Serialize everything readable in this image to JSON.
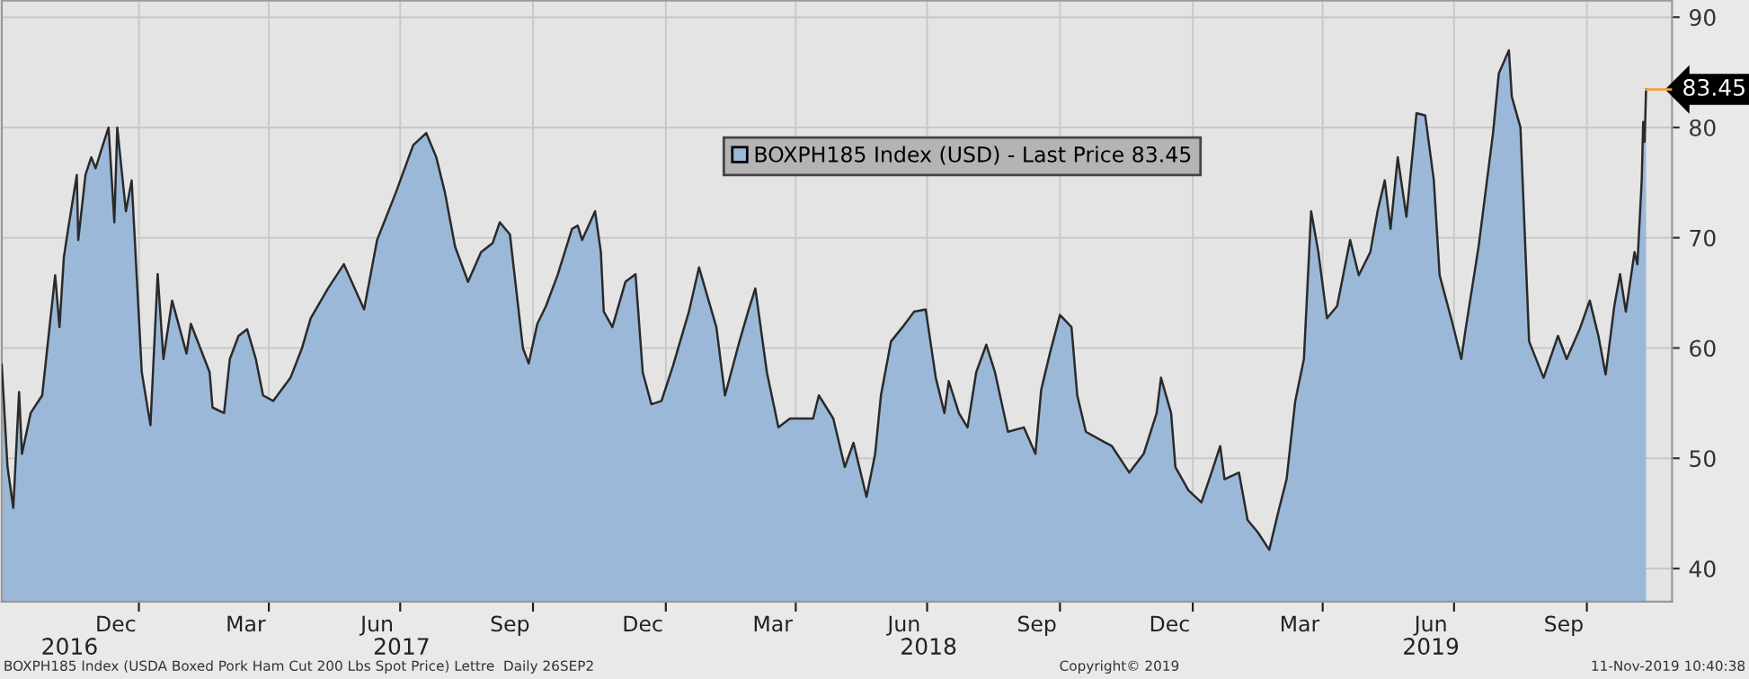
{
  "chart_data": {
    "type": "area",
    "series": [
      {
        "name": "BOXPH185 Index (USD) - Last Price 83.45",
        "color": "#9bb8d8",
        "x": [
          "2016-09-28",
          "2016-10-02",
          "2016-10-06",
          "2016-10-10",
          "2016-10-12",
          "2016-10-18",
          "2016-10-26",
          "2016-11-04",
          "2016-11-07",
          "2016-11-10",
          "2016-11-13",
          "2016-11-19",
          "2016-11-20",
          "2016-11-25",
          "2016-11-29",
          "2016-12-02",
          "2016-12-07",
          "2016-12-11",
          "2016-12-15",
          "2016-12-17",
          "2016-12-23",
          "2016-12-27",
          "2017-01-03",
          "2017-01-09",
          "2017-01-14",
          "2017-01-18",
          "2017-01-24",
          "2017-02-03",
          "2017-02-06",
          "2017-02-19",
          "2017-02-21",
          "2017-03-01",
          "2017-03-05",
          "2017-03-11",
          "2017-03-17",
          "2017-03-23",
          "2017-03-28",
          "2017-04-04",
          "2017-04-16",
          "2017-04-24",
          "2017-04-30",
          "2017-05-12",
          "2017-05-23",
          "2017-06-06",
          "2017-06-15",
          "2017-06-28",
          "2017-07-10",
          "2017-07-19",
          "2017-07-26",
          "2017-08-01",
          "2017-08-08",
          "2017-08-17",
          "2017-08-26",
          "2017-09-03",
          "2017-09-08",
          "2017-09-15",
          "2017-09-24",
          "2017-09-28",
          "2017-10-04",
          "2017-10-10",
          "2017-10-18",
          "2017-10-28",
          "2017-11-01",
          "2017-11-04",
          "2017-11-13",
          "2017-11-17",
          "2017-11-19",
          "2017-11-25",
          "2017-12-04",
          "2017-12-11",
          "2017-12-16",
          "2017-12-22",
          "2017-12-29",
          "2018-01-06",
          "2018-01-17",
          "2018-01-24",
          "2018-02-05",
          "2018-02-11",
          "2018-02-21",
          "2018-02-27",
          "2018-03-04",
          "2018-03-12",
          "2018-03-20",
          "2018-03-28",
          "2018-04-13",
          "2018-04-17",
          "2018-04-27",
          "2018-05-05",
          "2018-05-11",
          "2018-05-20",
          "2018-05-26",
          "2018-05-30",
          "2018-06-06",
          "2018-06-14",
          "2018-06-22",
          "2018-06-30",
          "2018-07-07",
          "2018-07-13",
          "2018-07-16",
          "2018-07-23",
          "2018-07-29",
          "2018-08-04",
          "2018-08-11",
          "2018-08-17",
          "2018-08-26",
          "2018-09-06",
          "2018-09-14",
          "2018-09-18",
          "2018-09-24",
          "2018-10-01",
          "2018-10-09",
          "2018-10-13",
          "2018-10-19",
          "2018-10-30",
          "2018-11-06",
          "2018-11-18",
          "2018-11-28",
          "2018-12-07",
          "2018-12-10",
          "2018-12-17",
          "2018-12-20",
          "2018-12-29",
          "2019-01-07",
          "2019-01-14",
          "2019-01-20",
          "2019-01-23",
          "2019-02-02",
          "2019-02-08",
          "2019-02-15",
          "2019-02-23",
          "2019-03-01",
          "2019-03-07",
          "2019-03-13",
          "2019-03-19",
          "2019-03-24",
          "2019-03-29",
          "2019-04-04",
          "2019-04-11",
          "2019-04-20",
          "2019-04-26",
          "2019-05-04",
          "2019-05-09",
          "2019-05-14",
          "2019-05-18",
          "2019-05-23",
          "2019-05-29",
          "2019-06-05",
          "2019-06-11",
          "2019-06-17",
          "2019-06-21",
          "2019-06-30",
          "2019-07-06",
          "2019-07-09",
          "2019-07-18",
          "2019-07-28",
          "2019-08-01",
          "2019-08-08",
          "2019-08-10",
          "2019-08-16",
          "2019-08-22",
          "2019-09-01",
          "2019-09-11",
          "2019-09-17",
          "2019-09-26",
          "2019-10-03",
          "2019-10-09",
          "2019-10-14",
          "2019-10-20",
          "2019-10-24",
          "2019-10-28",
          "2019-11-03",
          "2019-11-05",
          "2019-11-08",
          "2019-11-09",
          "2019-11-10",
          "2019-11-11"
        ],
        "values": [
          58.5,
          49.2,
          45.5,
          56,
          50.4,
          54.1,
          55.7,
          66.6,
          61.9,
          68.2,
          70.8,
          75.7,
          69.8,
          75.7,
          77.3,
          76.3,
          78.4,
          80,
          71.4,
          80,
          72.4,
          75.2,
          57.8,
          53,
          66.7,
          59,
          64.3,
          59.5,
          62.2,
          57.8,
          54.6,
          54.1,
          59,
          61.1,
          61.7,
          59,
          55.7,
          55.2,
          57.3,
          60,
          62.7,
          65.4,
          67.6,
          63.5,
          69.8,
          74.1,
          78.4,
          79.5,
          77.3,
          74.1,
          69.2,
          66,
          68.7,
          69.5,
          71.4,
          70.3,
          60,
          58.6,
          62.2,
          63.8,
          66.6,
          70.8,
          71.1,
          69.8,
          72.4,
          68.7,
          63.3,
          61.9,
          66,
          66.7,
          57.8,
          54.9,
          55.2,
          58.4,
          63.3,
          67.3,
          61.9,
          55.7,
          60.6,
          63.3,
          65.4,
          57.8,
          52.8,
          53.6,
          53.6,
          55.7,
          53.6,
          49.2,
          51.4,
          46.5,
          50.4,
          55.7,
          60.6,
          61.9,
          63.3,
          63.5,
          57.3,
          54.1,
          57,
          54.1,
          52.8,
          57.8,
          60.3,
          57.8,
          52.4,
          52.8,
          50.4,
          56.2,
          59.5,
          63,
          61.9,
          55.7,
          52.4,
          51.6,
          51.1,
          48.7,
          50.4,
          54.1,
          57.3,
          54.1,
          49.2,
          47.1,
          46,
          48.7,
          51.1,
          48.1,
          48.7,
          44.4,
          43.3,
          41.7,
          45,
          48.1,
          55.2,
          59,
          72.4,
          68.7,
          62.7,
          63.8,
          69.8,
          66.6,
          68.7,
          72.4,
          75.2,
          70.8,
          77.3,
          71.9,
          81.3,
          81.1,
          75.2,
          66.6,
          62.2,
          59,
          61.7,
          69.2,
          79.5,
          84.9,
          87,
          82.8,
          80,
          60.6,
          57.3,
          61.1,
          59,
          61.7,
          64.3,
          61.1,
          57.6,
          63.8,
          66.7,
          63.3,
          68.7,
          67.6,
          75.2,
          80.5,
          78.7,
          83.45
        ]
      }
    ],
    "xlim": [
      "2016-09-28",
      "2019-11-29"
    ],
    "xticks": [
      {
        "value": "2017-01-01",
        "label": null
      },
      {
        "value": "2017-04-01",
        "label": null
      },
      {
        "value": "2017-07-01",
        "label": null
      },
      {
        "value": "2017-10-01",
        "label": null
      },
      {
        "value": "2018-01-01",
        "label": null
      },
      {
        "value": "2018-04-01",
        "label": null
      },
      {
        "value": "2018-07-01",
        "label": null
      },
      {
        "value": "2018-10-01",
        "label": null
      },
      {
        "value": "2019-01-01",
        "label": null
      },
      {
        "value": "2019-04-01",
        "label": null
      },
      {
        "value": "2019-07-01",
        "label": null
      },
      {
        "value": "2019-10-01",
        "label": null
      },
      {
        "value": "2016-12-16",
        "label": "Dec"
      },
      {
        "value": "2017-03-16",
        "label": "Mar"
      },
      {
        "value": "2017-06-15",
        "label": "Jun"
      },
      {
        "value": "2017-09-15",
        "label": "Sep"
      },
      {
        "value": "2017-12-16",
        "label": "Dec"
      },
      {
        "value": "2018-03-16",
        "label": "Mar"
      },
      {
        "value": "2018-06-15",
        "label": "Jun"
      },
      {
        "value": "2018-09-15",
        "label": "Sep"
      },
      {
        "value": "2018-12-16",
        "label": "Dec"
      },
      {
        "value": "2019-03-16",
        "label": "Mar"
      },
      {
        "value": "2019-06-15",
        "label": "Jun"
      },
      {
        "value": "2019-09-15",
        "label": "Sep"
      }
    ],
    "x2lim": [
      "2016-09-28",
      "2019-11-29"
    ],
    "x2ticks": [
      {
        "value": "2016-11-14",
        "label": "2016"
      },
      {
        "value": "2017-07-02",
        "label": "2017"
      },
      {
        "value": "2018-07-02",
        "label": "2018"
      },
      {
        "value": "2019-06-15",
        "label": "2019"
      }
    ],
    "ylim": [
      37,
      91.5
    ],
    "yticks": [
      40,
      50,
      60,
      70,
      80,
      90
    ],
    "grid": true,
    "legend": "top",
    "annotations": [
      {
        "text": "83.45",
        "x": "2019-11-11",
        "y": 83.45
      },
      "BOXPH185 Index (USDA Boxed Pork Ham Cut 200 Lbs Spot Price) Lettre  Daily 26SEP2",
      "Copyright© 2019",
      "11-Nov-2019 10:40:38"
    ]
  }
}
